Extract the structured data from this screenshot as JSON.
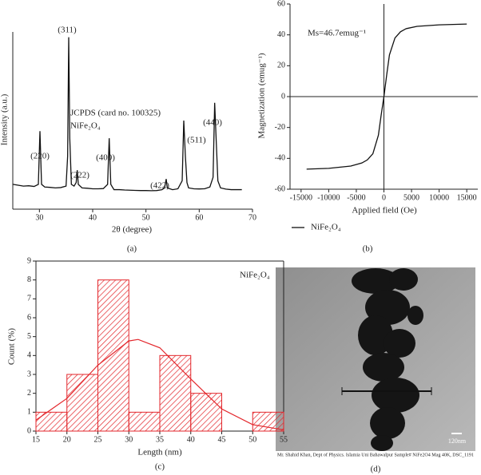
{
  "chart_data": [
    {
      "type": "line",
      "caption": "(a)",
      "xlabel": "2θ (degree)",
      "ylabel": "Intensity (a.u.)",
      "annotations": [
        "(311)",
        "JCPDS (card no. 100325)",
        "NiFe₂O₄",
        "(220)",
        "(222)",
        "(400)",
        "(422)",
        "(511)",
        "(440)"
      ],
      "x": [
        25,
        26,
        27,
        28,
        29,
        29.8,
        30.1,
        30.4,
        31,
        32,
        33,
        34,
        35,
        35.3,
        35.5,
        35.7,
        36,
        36.5,
        36.9,
        37.1,
        37.3,
        38,
        39,
        40,
        41,
        42,
        42.8,
        43.1,
        43.4,
        44,
        45,
        46,
        47,
        48,
        49,
        50,
        51,
        52,
        53,
        53.5,
        53.8,
        54,
        55,
        56,
        56.8,
        57.1,
        57.4,
        57.7,
        58,
        59,
        60,
        61,
        62,
        62.6,
        62.9,
        63.2,
        63.5,
        64,
        65,
        66,
        67,
        68
      ],
      "values": [
        14,
        13.5,
        13,
        13.2,
        12.8,
        14,
        44,
        14,
        12.5,
        12.3,
        12,
        12.2,
        13,
        30,
        97,
        40,
        14,
        13,
        15,
        22,
        14,
        12,
        11.8,
        11.5,
        11.5,
        11.6,
        14,
        40,
        14,
        11,
        11,
        10.8,
        10.7,
        10.6,
        10.5,
        10.5,
        10.4,
        10.5,
        11,
        12,
        17,
        12,
        11,
        11.5,
        16,
        50,
        30,
        15,
        12,
        11.5,
        11.4,
        11.5,
        12.5,
        18,
        60,
        38,
        16,
        12,
        11.3,
        11,
        11,
        11
      ],
      "color": "#111111",
      "xlim": [
        25,
        70
      ],
      "ylim": [
        0,
        100
      ],
      "xticks": [
        30,
        40,
        50,
        60,
        70
      ]
    },
    {
      "type": "line",
      "caption": "(b)",
      "xlabel": "Applied field (Oe)",
      "ylabel": "Magnetization (emug⁻¹)",
      "annotations": [
        "Ms=46.7emug⁻¹"
      ],
      "x": [
        -14000,
        -10000,
        -6000,
        -4000,
        -3000,
        -2000,
        -1000,
        -500,
        0,
        500,
        1000,
        2000,
        3000,
        4000,
        6000,
        10000,
        15000
      ],
      "series": [
        {
          "name": "NiFe₂O₄",
          "color": "#111111",
          "values": [
            -47,
            -46.5,
            -45,
            -43,
            -41,
            -37,
            -25,
            -12,
            0,
            14,
            27,
            38,
            42,
            44,
            45.5,
            46.5,
            47
          ]
        }
      ],
      "xlim": [
        -17000,
        17000
      ],
      "ylim": [
        -60,
        60
      ],
      "xticks": [
        -15000,
        -10000,
        -5000,
        0,
        5000,
        10000,
        15000
      ],
      "yticks": [
        -60,
        -40,
        -20,
        0,
        20,
        40,
        60
      ]
    },
    {
      "type": "histogram",
      "caption": "(c)",
      "xlabel": "Length (nm)",
      "ylabel": "Count (%)",
      "annotations": [
        "NiFe₂O₄"
      ],
      "bins": [
        15,
        20,
        25,
        30,
        35,
        40,
        45,
        50,
        55
      ],
      "values": [
        1,
        3,
        8,
        1,
        4,
        2,
        0,
        1
      ],
      "color": "#e3262b",
      "fit": {
        "x": [
          15,
          20,
          25,
          30,
          31.5,
          35,
          40,
          45,
          50,
          55
        ],
        "values": [
          0.58,
          1.73,
          3.49,
          4.77,
          4.85,
          4.41,
          2.76,
          1.17,
          0.34,
          0.065
        ],
        "color": "#e3262b"
      },
      "xlim": [
        15,
        55
      ],
      "ylim": [
        0,
        9
      ],
      "xticks": [
        15,
        20,
        25,
        30,
        35,
        40,
        45,
        50,
        55
      ],
      "yticks": [
        0,
        1,
        2,
        3,
        4,
        5,
        6,
        7,
        8,
        9
      ]
    }
  ],
  "image_panel": {
    "caption": "(d)",
    "caption_bar": "Mr. Shahid Khan, Dept of Physics. Islamia Uni Bahawalpur Sample# NiFe2O4 Mag 40K, DSC_1191",
    "scale_label": "120nm"
  }
}
